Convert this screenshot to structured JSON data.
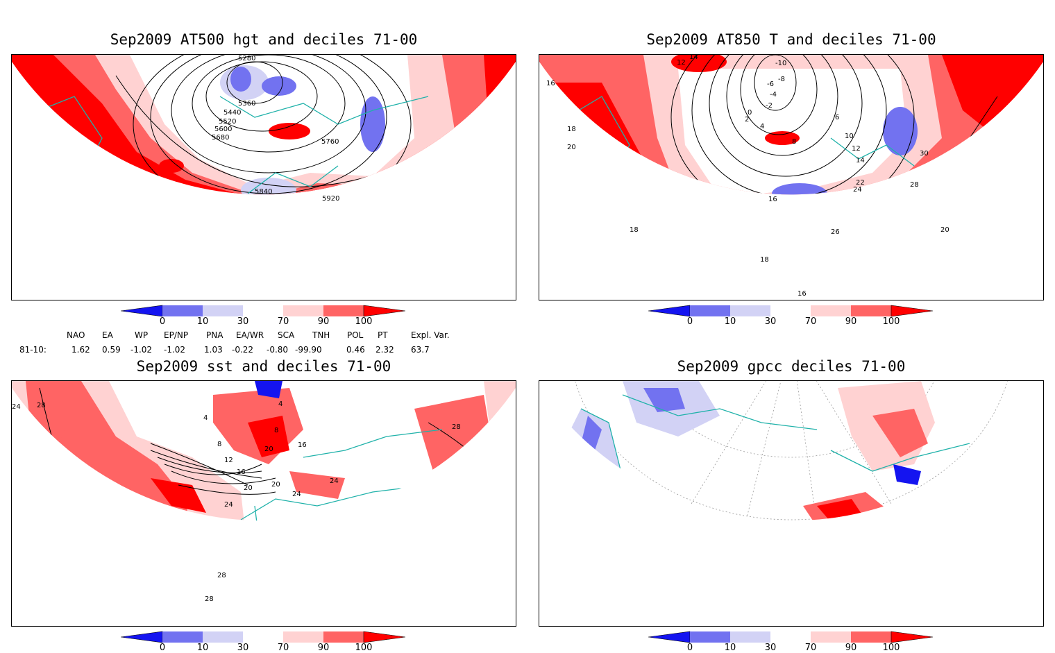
{
  "panels": [
    {
      "title": "Sep2009 AT500 hgt and deciles 71-00"
    },
    {
      "title": "Sep2009 AT850 T and deciles 71-00"
    },
    {
      "title": "Sep2009 sst and deciles 71-00"
    },
    {
      "title": "Sep2009 gpcc deciles 71-00"
    }
  ],
  "colorbar": {
    "labels": [
      "0",
      "10",
      "30",
      "70",
      "90",
      "100"
    ],
    "colors": [
      "#1414f0",
      "#7272f0",
      "#d2d2f5",
      "#ffffff",
      "#ffd2d2",
      "#ff6464",
      "#ff0000"
    ]
  },
  "indices": {
    "headers": [
      "NAO",
      "EA",
      "WP",
      "EP/NP",
      "PNA",
      "EA/WR",
      "SCA",
      "TNH",
      "POL",
      "PT",
      "Expl. Var."
    ],
    "row_label": "81-10:",
    "values": [
      "1.62",
      "0.59",
      "-1.02",
      "-1.02",
      "1.03",
      "-0.22",
      "-0.80",
      "-99.90",
      "0.46",
      "2.32",
      "63.7"
    ]
  },
  "contour_labels": {
    "hgt": [
      "5280",
      "5360",
      "5440",
      "5520",
      "5600",
      "5680",
      "5760",
      "5840",
      "5920"
    ],
    "t850": [
      "14",
      "12",
      "-10",
      "-8",
      "-6",
      "-4",
      "-2",
      "0",
      "2",
      "4",
      "6",
      "8",
      "10",
      "12",
      "14",
      "16",
      "18",
      "20",
      "22",
      "24",
      "26",
      "28",
      "30",
      "16",
      "18",
      "20",
      "18",
      "16"
    ],
    "sst": [
      "24",
      "28",
      "4",
      "8",
      "12",
      "16",
      "20",
      "24",
      "20",
      "24",
      "28",
      "28",
      "28",
      "24",
      "20",
      "16",
      "4",
      "8"
    ]
  }
}
